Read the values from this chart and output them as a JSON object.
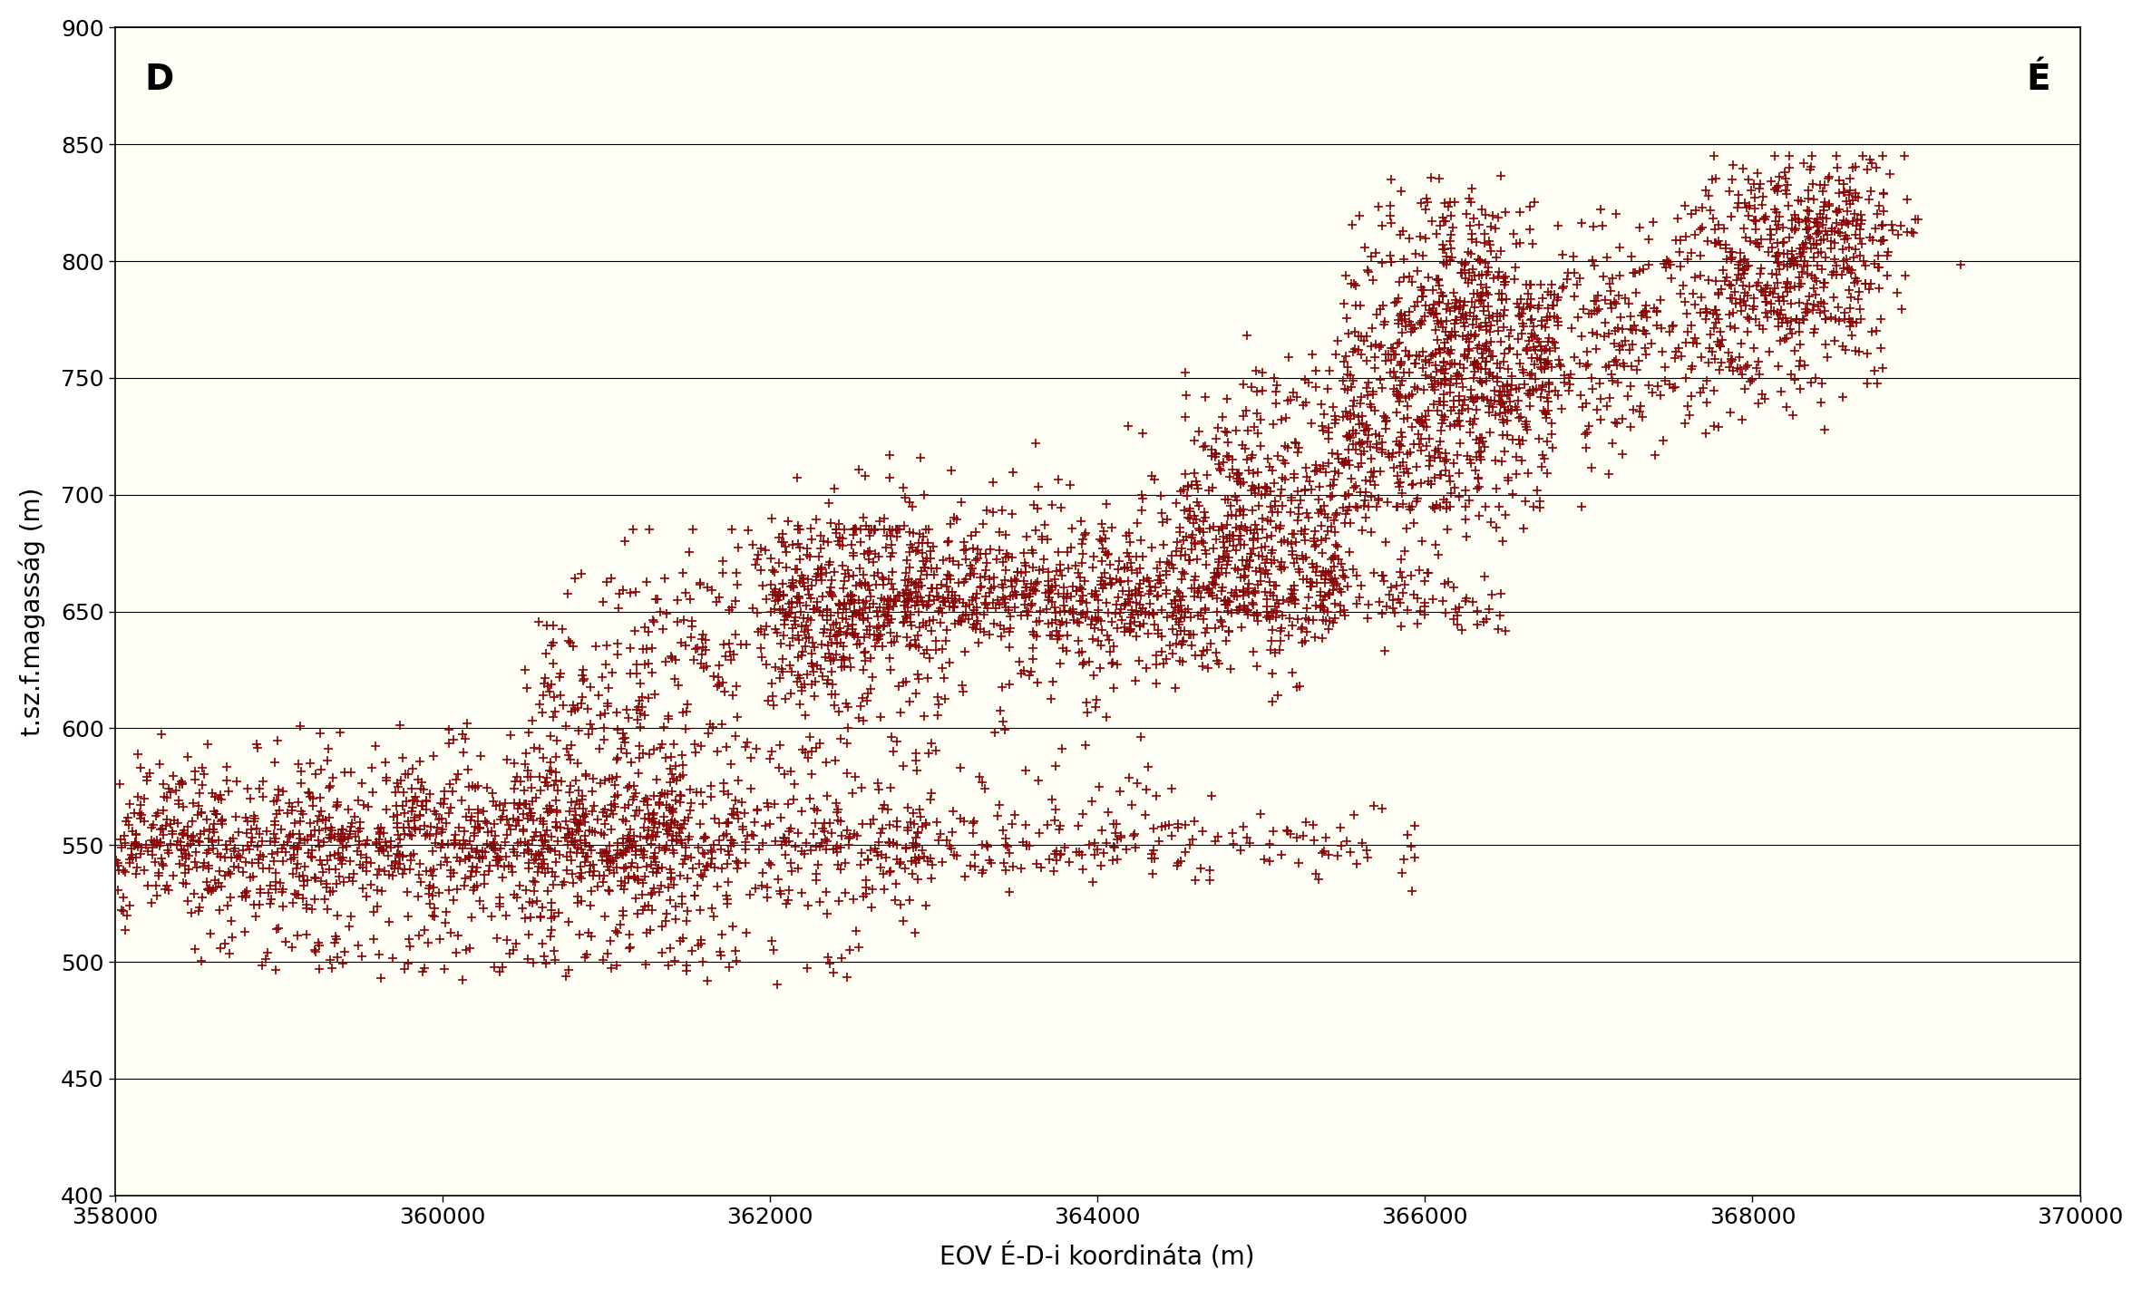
{
  "xlabel": "EOV É-D-i koordináta (m)",
  "ylabel": "t.sz.f.magasság (m)",
  "xlim": [
    358000,
    370000
  ],
  "ylim": [
    400,
    900
  ],
  "xticks": [
    358000,
    360000,
    362000,
    364000,
    366000,
    368000,
    370000
  ],
  "yticks": [
    400,
    450,
    500,
    550,
    600,
    650,
    700,
    750,
    800,
    850,
    900
  ],
  "bg_color": "#FFFFF5",
  "marker_color": "#8B0000",
  "label_D": "D",
  "label_E": "É",
  "label_fontsize": 28,
  "xlabel_fontsize": 20,
  "ylabel_fontsize": 20,
  "tick_fontsize": 18,
  "seed": 42
}
